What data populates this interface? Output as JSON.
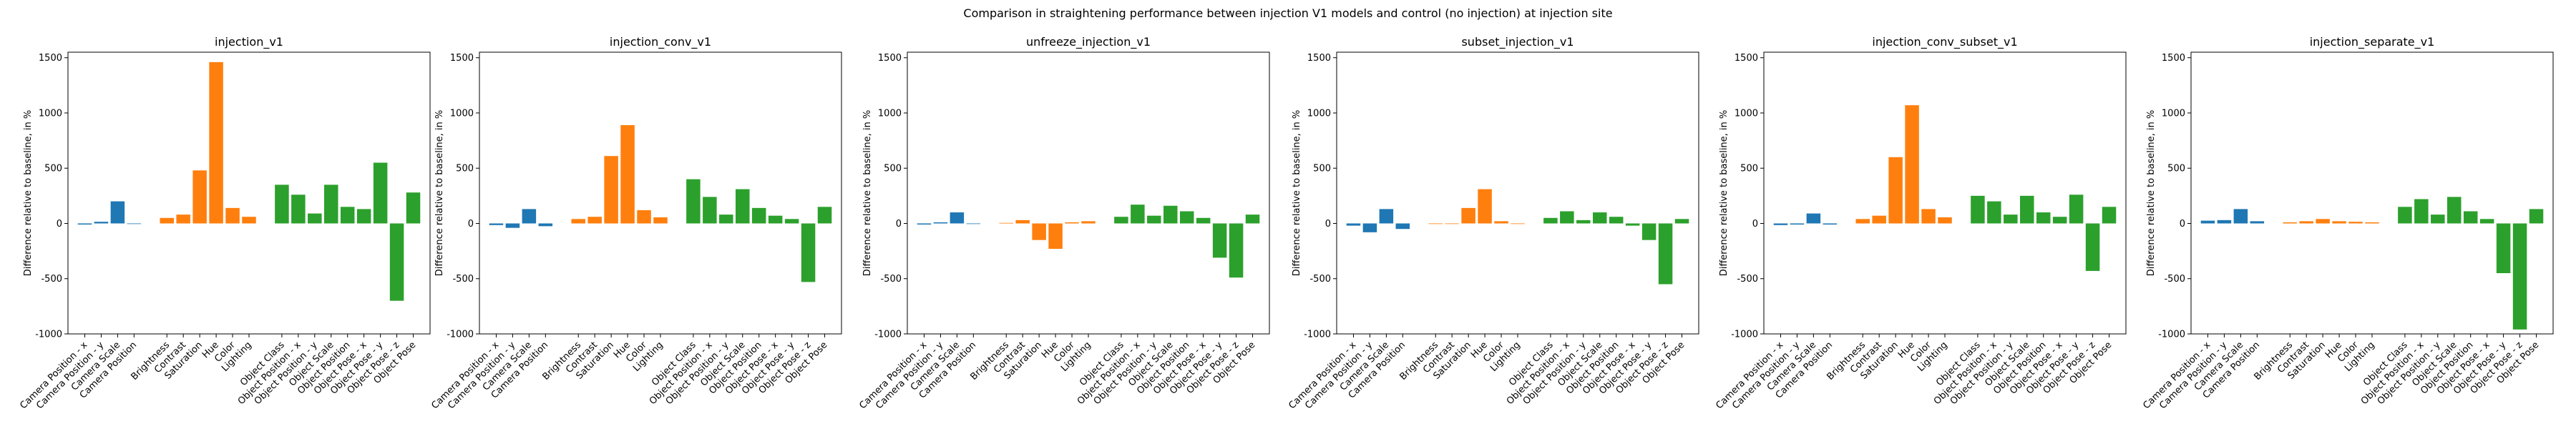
{
  "figure": {
    "title": "Comparison in straightening performance between injection V1 models and control (no injection) at injection site"
  },
  "colors": {
    "camera": "#1f77b4",
    "appearance": "#ff7f0e",
    "object": "#2ca02c",
    "axes": "#000000"
  },
  "chart_data": [
    {
      "type": "bar",
      "title": "injection_v1",
      "ylabel": "Difference relative to baseline, in %",
      "ylim": [
        -1000,
        1550
      ],
      "yticks": [
        -1000,
        -500,
        0,
        500,
        1000,
        1500
      ],
      "categories": [
        "Camera Position - x",
        "Camera Position - y",
        "Camera Scale",
        "Camera Position",
        "",
        "Brightness",
        "Contrast",
        "Saturation",
        "Hue",
        "Color",
        "Lighting",
        "",
        "Object Class",
        "Object Position - x",
        "Object Position - y",
        "Object Scale",
        "Object Position",
        "Object Pose - x",
        "Object Pose - y",
        "Object Pose - z",
        "Object Pose"
      ],
      "groups": [
        "camera",
        "camera",
        "camera",
        "camera",
        "",
        "appearance",
        "appearance",
        "appearance",
        "appearance",
        "appearance",
        "appearance",
        "",
        "object",
        "object",
        "object",
        "object",
        "object",
        "object",
        "object",
        "object",
        "object"
      ],
      "values": [
        -10,
        15,
        200,
        -5,
        null,
        50,
        80,
        480,
        1460,
        140,
        60,
        null,
        350,
        260,
        90,
        350,
        150,
        130,
        550,
        -700,
        280
      ]
    },
    {
      "type": "bar",
      "title": "injection_conv_v1",
      "ylabel": "Difference relative to baseline, in %",
      "ylim": [
        -1000,
        1550
      ],
      "yticks": [
        -1000,
        -500,
        0,
        500,
        1000,
        1500
      ],
      "categories": [
        "Camera Position - x",
        "Camera Position - y",
        "Camera Scale",
        "Camera Position",
        "",
        "Brightness",
        "Contrast",
        "Saturation",
        "Hue",
        "Color",
        "Lighting",
        "",
        "Object Class",
        "Object Position - x",
        "Object Position - y",
        "Object Scale",
        "Object Position",
        "Object Pose - x",
        "Object Pose - y",
        "Object Pose - z",
        "Object Pose"
      ],
      "groups": [
        "camera",
        "camera",
        "camera",
        "camera",
        "",
        "appearance",
        "appearance",
        "appearance",
        "appearance",
        "appearance",
        "appearance",
        "",
        "object",
        "object",
        "object",
        "object",
        "object",
        "object",
        "object",
        "object",
        "object"
      ],
      "values": [
        -15,
        -40,
        130,
        -25,
        null,
        40,
        60,
        610,
        890,
        120,
        55,
        null,
        400,
        240,
        80,
        310,
        140,
        70,
        40,
        -530,
        150
      ]
    },
    {
      "type": "bar",
      "title": "unfreeze_injection_v1",
      "ylabel": "Difference relative to baseline, in %",
      "ylim": [
        -1000,
        1550
      ],
      "yticks": [
        -1000,
        -500,
        0,
        500,
        1000,
        1500
      ],
      "categories": [
        "Camera Position - x",
        "Camera Position - y",
        "Camera Scale",
        "Camera Position",
        "",
        "Brightness",
        "Contrast",
        "Saturation",
        "Hue",
        "Color",
        "Lighting",
        "",
        "Object Class",
        "Object Position - x",
        "Object Position - y",
        "Object Scale",
        "Object Position",
        "Object Pose - x",
        "Object Pose - y",
        "Object Pose - z",
        "Object Pose"
      ],
      "groups": [
        "camera",
        "camera",
        "camera",
        "camera",
        "",
        "appearance",
        "appearance",
        "appearance",
        "appearance",
        "appearance",
        "appearance",
        "",
        "object",
        "object",
        "object",
        "object",
        "object",
        "object",
        "object",
        "object",
        "object"
      ],
      "values": [
        -10,
        10,
        100,
        -5,
        null,
        5,
        30,
        -150,
        -230,
        10,
        20,
        null,
        60,
        170,
        70,
        160,
        110,
        50,
        -310,
        -490,
        80
      ]
    },
    {
      "type": "bar",
      "title": "subset_injection_v1",
      "ylabel": "Difference relative to baseline, in %",
      "ylim": [
        -1000,
        1550
      ],
      "yticks": [
        -1000,
        -500,
        0,
        500,
        1000,
        1500
      ],
      "categories": [
        "Camera Position - x",
        "Camera Position - y",
        "Camera Scale",
        "Camera Position",
        "",
        "Brightness",
        "Contrast",
        "Saturation",
        "Hue",
        "Color",
        "Lighting",
        "",
        "Object Class",
        "Object Position - x",
        "Object Position - y",
        "Object Scale",
        "Object Position",
        "Object Pose - x",
        "Object Pose - y",
        "Object Pose - z",
        "Object Pose"
      ],
      "groups": [
        "camera",
        "camera",
        "camera",
        "camera",
        "",
        "appearance",
        "appearance",
        "appearance",
        "appearance",
        "appearance",
        "appearance",
        "",
        "object",
        "object",
        "object",
        "object",
        "object",
        "object",
        "object",
        "object",
        "object"
      ],
      "values": [
        -20,
        -80,
        130,
        -50,
        null,
        0,
        0,
        140,
        310,
        20,
        0,
        null,
        50,
        110,
        30,
        100,
        60,
        -20,
        -150,
        -550,
        40
      ]
    },
    {
      "type": "bar",
      "title": "injection_conv_subset_v1",
      "ylabel": "Difference relative to baseline, in %",
      "ylim": [
        -1000,
        1550
      ],
      "yticks": [
        -1000,
        -500,
        0,
        500,
        1000,
        1500
      ],
      "categories": [
        "Camera Position - x",
        "Camera Position - y",
        "Camera Scale",
        "Camera Position",
        "",
        "Brightness",
        "Contrast",
        "Saturation",
        "Hue",
        "Color",
        "Lighting",
        "",
        "Object Class",
        "Object Position - x",
        "Object Position - y",
        "Object Scale",
        "Object Position",
        "Object Pose - x",
        "Object Pose - y",
        "Object Pose - z",
        "Object Pose"
      ],
      "groups": [
        "camera",
        "camera",
        "camera",
        "camera",
        "",
        "appearance",
        "appearance",
        "appearance",
        "appearance",
        "appearance",
        "appearance",
        "",
        "object",
        "object",
        "object",
        "object",
        "object",
        "object",
        "object",
        "object",
        "object"
      ],
      "values": [
        -15,
        -10,
        90,
        -10,
        null,
        40,
        70,
        600,
        1070,
        130,
        55,
        null,
        250,
        200,
        80,
        250,
        100,
        60,
        260,
        -430,
        150
      ]
    },
    {
      "type": "bar",
      "title": "injection_separate_v1",
      "ylabel": "Difference relative to baseline, in %",
      "ylim": [
        -1000,
        1550
      ],
      "yticks": [
        -1000,
        -500,
        0,
        500,
        1000,
        1500
      ],
      "categories": [
        "Camera Position - x",
        "Camera Position - y",
        "Camera Scale",
        "Camera Position",
        "",
        "Brightness",
        "Contrast",
        "Saturation",
        "Hue",
        "Color",
        "Lighting",
        "",
        "Object Class",
        "Object Position - x",
        "Object Position - y",
        "Object Scale",
        "Object Position",
        "Object Pose - x",
        "Object Pose - y",
        "Object Pose - z",
        "Object Pose"
      ],
      "groups": [
        "camera",
        "camera",
        "camera",
        "camera",
        "",
        "appearance",
        "appearance",
        "appearance",
        "appearance",
        "appearance",
        "appearance",
        "",
        "object",
        "object",
        "object",
        "object",
        "object",
        "object",
        "object",
        "object",
        "object"
      ],
      "values": [
        25,
        30,
        130,
        20,
        null,
        10,
        20,
        40,
        20,
        15,
        10,
        null,
        150,
        220,
        80,
        240,
        110,
        40,
        -450,
        -960,
        130
      ]
    }
  ]
}
